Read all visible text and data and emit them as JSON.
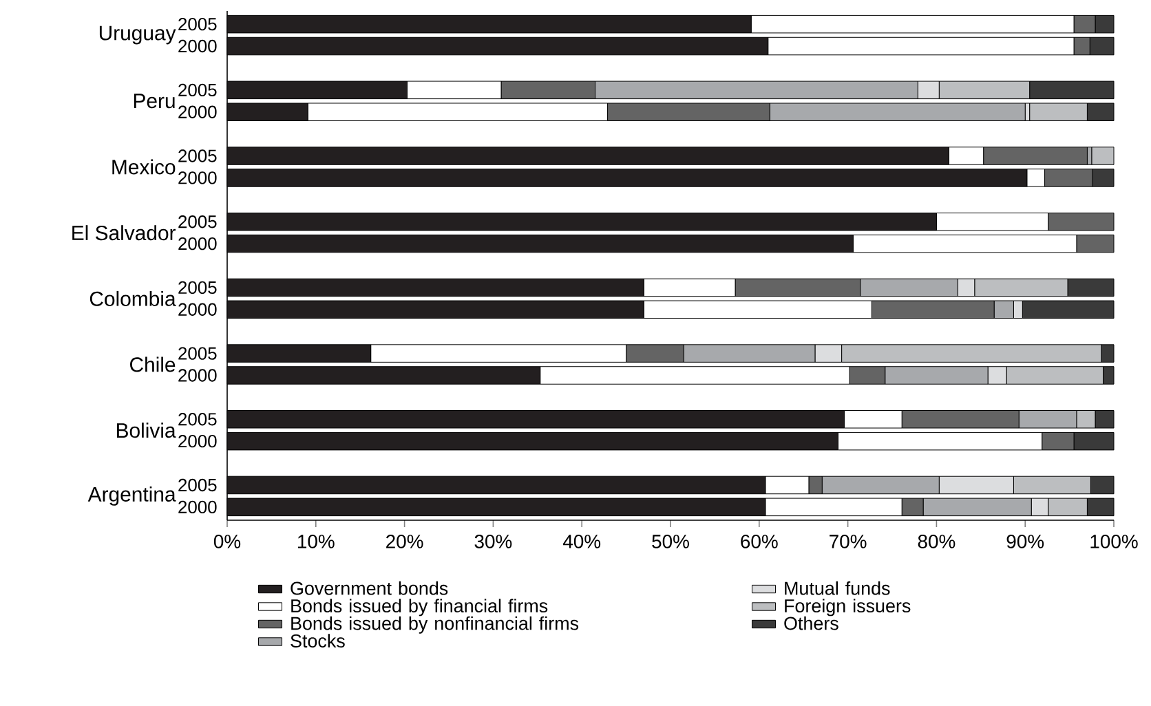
{
  "chart_data": {
    "type": "bar",
    "orientation": "horizontal",
    "stacked": true,
    "categories": [
      "2005",
      "2000",
      "2005",
      "2000",
      "2005",
      "2000",
      "2005",
      "2000",
      "2005",
      "2000",
      "2005",
      "2000",
      "2005",
      "2000",
      "2005",
      "2000"
    ],
    "annotations": [
      "Uruguay",
      "Peru",
      "Mexico",
      "El Salvador",
      "Colombia",
      "Chile",
      "Bolivia",
      "Argentina"
    ],
    "series": [
      {
        "name": "Government bonds",
        "color": "#231f20",
        "values": [
          59.1,
          61.0,
          20.3,
          9.1,
          81.4,
          90.2,
          80.0,
          70.6,
          47.0,
          47.0,
          16.2,
          35.3,
          69.6,
          68.9,
          60.7,
          60.7
        ]
      },
      {
        "name": "Bonds issued by financial firms",
        "color": "#ffffff",
        "values": [
          36.4,
          34.5,
          10.6,
          33.8,
          3.9,
          2.0,
          12.6,
          25.2,
          10.3,
          25.7,
          28.8,
          34.9,
          6.5,
          23.0,
          4.9,
          15.4
        ]
      },
      {
        "name": "Bonds issued by nonfinancial firms",
        "color": "#646464",
        "values": [
          2.4,
          1.8,
          10.6,
          18.3,
          11.7,
          5.4,
          7.4,
          4.2,
          14.1,
          13.8,
          6.5,
          4.0,
          13.2,
          3.6,
          1.5,
          2.4
        ]
      },
      {
        "name": "Stocks",
        "color": "#a7a9ac",
        "values": [
          0,
          0,
          36.4,
          28.8,
          0.5,
          0,
          0,
          0,
          11.0,
          2.2,
          14.8,
          11.6,
          6.5,
          0,
          13.2,
          12.2
        ]
      },
      {
        "name": "Mutual funds",
        "color": "#dcdddf",
        "values": [
          0,
          0,
          2.4,
          0.5,
          0,
          0,
          0,
          0,
          1.9,
          1.0,
          3.0,
          2.1,
          0,
          0,
          8.4,
          1.9
        ]
      },
      {
        "name": "Foreign issuers",
        "color": "#bcbec0",
        "values": [
          0,
          0,
          10.2,
          6.5,
          2.5,
          0,
          0,
          0,
          10.5,
          0,
          29.3,
          10.9,
          2.1,
          0,
          8.7,
          4.4
        ]
      },
      {
        "name": "Others",
        "color": "#3a3a3a",
        "values": [
          2.1,
          2.7,
          9.5,
          3.0,
          0,
          2.4,
          0,
          0,
          5.2,
          10.3,
          1.4,
          1.2,
          2.1,
          4.5,
          2.6,
          3.0
        ]
      }
    ],
    "xlim": [
      0,
      100
    ],
    "xticks": [
      {
        "value": 0,
        "label": "0%"
      },
      {
        "value": 10,
        "label": "10%"
      },
      {
        "value": 20,
        "label": "20%"
      },
      {
        "value": 30,
        "label": "30%"
      },
      {
        "value": 40,
        "label": "40%"
      },
      {
        "value": 50,
        "label": "50%"
      },
      {
        "value": 60,
        "label": "60%"
      },
      {
        "value": 70,
        "label": "70%"
      },
      {
        "value": 80,
        "label": "80%"
      },
      {
        "value": 90,
        "label": "90%"
      },
      {
        "value": 100,
        "label": "100%"
      }
    ],
    "legend": "bottom",
    "grid": false
  }
}
